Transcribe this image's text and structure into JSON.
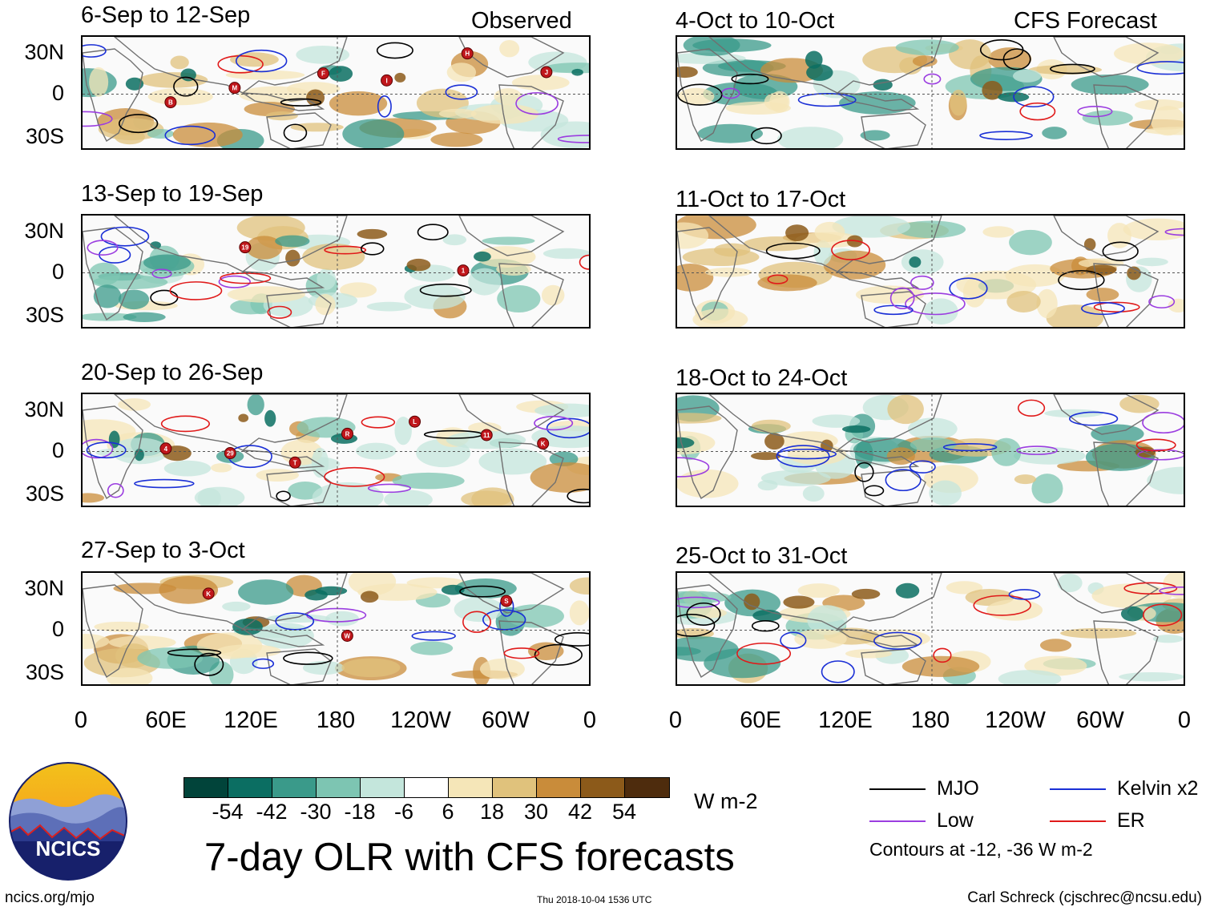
{
  "header": {
    "left_label": "Observed",
    "right_label": "CFS Forecast"
  },
  "panels": {
    "observed": [
      {
        "date_range": "6-Sep to 12-Sep"
      },
      {
        "date_range": "13-Sep to 19-Sep"
      },
      {
        "date_range": "20-Sep to 26-Sep"
      },
      {
        "date_range": "27-Sep to 3-Oct"
      }
    ],
    "forecast": [
      {
        "date_range": "4-Oct to 10-Oct"
      },
      {
        "date_range": "11-Oct to 17-Oct"
      },
      {
        "date_range": "18-Oct to 24-Oct"
      },
      {
        "date_range": "25-Oct to 31-Oct"
      }
    ]
  },
  "axes": {
    "lat_labels": [
      "30N",
      "0",
      "30S"
    ],
    "lon_labels": [
      "0",
      "60E",
      "120E",
      "180",
      "120W",
      "60W",
      "0"
    ]
  },
  "storm_markers": {
    "observed_1": [
      "B",
      "M",
      "F",
      "I",
      "H",
      "J"
    ],
    "observed_2": [
      "19",
      "1"
    ],
    "observed_3": [
      "4",
      "29",
      "T",
      "R",
      "L",
      "11",
      "K"
    ],
    "observed_4": [
      "K",
      "W",
      "S"
    ]
  },
  "colorbar": {
    "ticks": [
      "-54",
      "-42",
      "-30",
      "-18",
      "-6",
      "6",
      "18",
      "30",
      "42",
      "54"
    ],
    "colors": [
      "#01443a",
      "#0b6e62",
      "#3a9a8a",
      "#7dc5b2",
      "#c4e6dc",
      "#ffffff",
      "#f5e6b8",
      "#e0c27c",
      "#c98c3a",
      "#8c5a1a",
      "#4e2c0d"
    ],
    "units": "W m-2"
  },
  "title": "7-day OLR with CFS forecasts",
  "legend": {
    "items": [
      {
        "label": "MJO",
        "color": "#000000"
      },
      {
        "label": "Kelvin x2",
        "color": "#1a2fd6"
      },
      {
        "label": "Low",
        "color": "#9b3de0"
      },
      {
        "label": "ER",
        "color": "#e01a1a"
      }
    ],
    "contours_note": "Contours at -12, -36 W m-2"
  },
  "logo": {
    "text": "NCICS"
  },
  "footer": {
    "url": "ncics.org/mjo",
    "timestamp": "Thu 2018-10-04 1536 UTC",
    "credit": "Carl Schreck (cjschrec@ncsu.edu)"
  }
}
